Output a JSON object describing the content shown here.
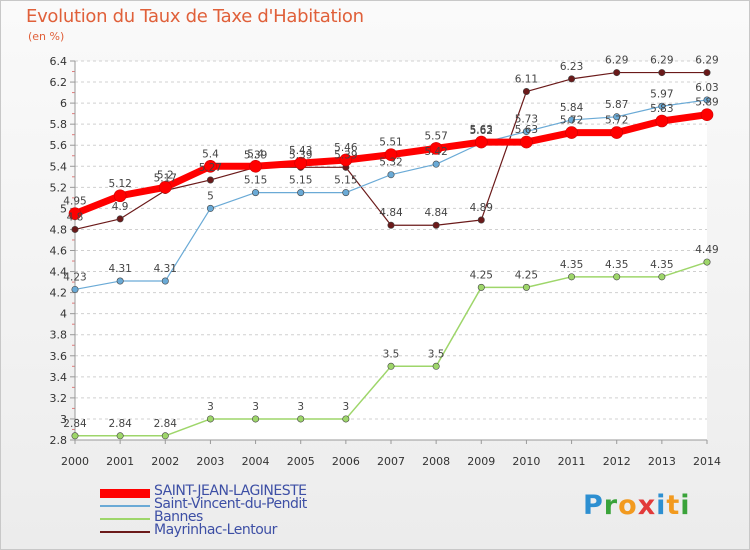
{
  "title": "Evolution du Taux de Taxe d'Habitation",
  "unit_label": "(en %)",
  "logo": {
    "letters": [
      "P",
      "r",
      "o",
      "x",
      "i",
      "t",
      "i"
    ],
    "colors": [
      "#2d8fd1",
      "#3aa33a",
      "#f29a1f",
      "#e23a3a",
      "#2d8fd1",
      "#f29a1f",
      "#3aa33a"
    ]
  },
  "chart_data": {
    "type": "line",
    "x": [
      "2000",
      "2001",
      "2002",
      "2003",
      "2004",
      "2005",
      "2006",
      "2007",
      "2008",
      "2009",
      "2010",
      "2011",
      "2012",
      "2013",
      "2014"
    ],
    "ylim": [
      2.8,
      6.4
    ],
    "yticks": [
      "2.8",
      "3",
      "3.2",
      "3.4",
      "3.6",
      "3.8",
      "4",
      "4.2",
      "4.4",
      "4.6",
      "4.8",
      "5",
      "5.2",
      "5.4",
      "5.6",
      "5.8",
      "6",
      "6.2",
      "6.4"
    ],
    "grid": "horizontal",
    "legend_position": "bottom-left",
    "series": [
      {
        "name": "Mayrinhac-Lentour",
        "color": "#6b1a1a",
        "width": 1.2,
        "values": [
          4.8,
          4.9,
          5.17,
          5.27,
          5.39,
          5.39,
          5.39,
          4.84,
          4.84,
          4.89,
          6.11,
          6.23,
          6.29,
          6.29,
          6.29
        ],
        "labels": [
          "4.8",
          "4.9",
          "5.17",
          "5.27",
          "5.39",
          "5.39",
          "5.39",
          "4.84",
          "4.84",
          "4.89",
          "6.11",
          "6.23",
          "6.29",
          "6.29",
          "6.29"
        ]
      },
      {
        "name": "Bannes",
        "color": "#9ed66a",
        "width": 1.5,
        "values": [
          2.84,
          2.84,
          2.84,
          3,
          3,
          3,
          3,
          3.5,
          3.5,
          4.25,
          4.25,
          4.35,
          4.35,
          4.35,
          4.49
        ],
        "labels": [
          "2.84",
          "2.84",
          "2.84",
          "3",
          "3",
          "3",
          "3",
          "3.5",
          "3.5",
          "4.25",
          "4.25",
          "4.35",
          "4.35",
          "4.35",
          "4.49"
        ]
      },
      {
        "name": "Saint-Vincent-du-Pendit",
        "color": "#6aaad6",
        "width": 1.2,
        "values": [
          4.23,
          4.31,
          4.31,
          5,
          5.15,
          5.15,
          5.15,
          5.32,
          5.42,
          5.62,
          5.73,
          5.84,
          5.87,
          5.97,
          6.03
        ],
        "labels": [
          "4.23",
          "4.31",
          "4.31",
          "5",
          "5.15",
          "5.15",
          "5.15",
          "5.32",
          "5.42",
          "5.62",
          "5.73",
          "5.84",
          "5.87",
          "5.97",
          "6.03"
        ]
      },
      {
        "name": "SAINT-JEAN-LAGINESTE",
        "color": "#ff0000",
        "width": 7,
        "values": [
          4.95,
          5.12,
          5.2,
          5.4,
          5.4,
          5.43,
          5.46,
          5.51,
          5.57,
          5.63,
          5.63,
          5.72,
          5.72,
          5.83,
          5.89
        ],
        "labels": [
          "4.95",
          "5.12",
          "5.2",
          "5.4",
          "5.4",
          "5.43",
          "5.46",
          "5.51",
          "5.57",
          "5.63",
          "5.63",
          "5.72",
          "5.72",
          "5.83",
          "5.89"
        ]
      }
    ],
    "legend_order": [
      "SAINT-JEAN-LAGINESTE",
      "Saint-Vincent-du-Pendit",
      "Bannes",
      "Mayrinhac-Lentour"
    ]
  }
}
